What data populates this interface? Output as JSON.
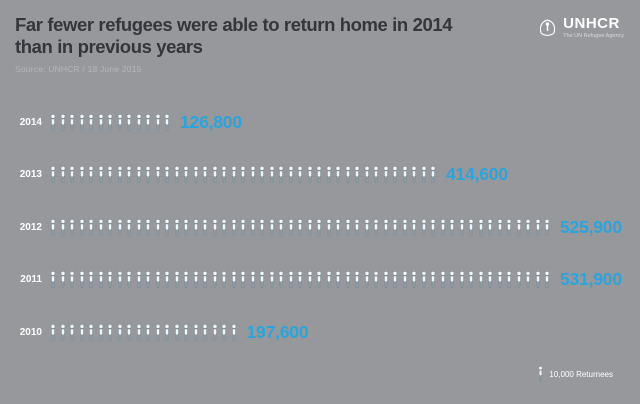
{
  "header": {
    "title_line1": "Far fewer refugees were able to return home in 2014",
    "title_line2": "than in previous years",
    "source": "Source: UNHCR / 18 June 2015",
    "logo_text": "UNHCR",
    "logo_tagline": "The UN Refugee Agency"
  },
  "legend": {
    "label": "10,000 Returnees"
  },
  "chart_data": {
    "type": "pictogram",
    "title": "Far fewer refugees were able to return home in 2014 than in previous years",
    "source": "Source: UNHCR / 18 June 2015",
    "unit_per_icon": 10000,
    "unit_label": "10,000 Returnees",
    "categories": [
      "2014",
      "2013",
      "2012",
      "2011",
      "2010"
    ],
    "values": [
      126800,
      414600,
      525900,
      531900,
      197600
    ],
    "value_labels": [
      "126,800",
      "414,600",
      "525,900",
      "531,900",
      "197,600"
    ],
    "icon": "person-icon",
    "accent_color": "#2aa4dc",
    "background_color": "#97989c",
    "icon_fill": "#f0f6fa",
    "icon_stroke": "#5d707c"
  }
}
